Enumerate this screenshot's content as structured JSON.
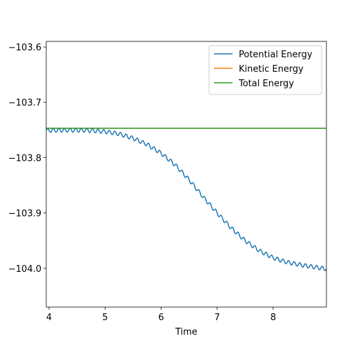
{
  "chart_data": {
    "type": "line",
    "title": "",
    "xlabel": "Time",
    "ylabel": "",
    "xlim": [
      3.95,
      8.95
    ],
    "ylim": [
      -104.07,
      -103.59
    ],
    "x_ticks": [
      4,
      5,
      6,
      7,
      8
    ],
    "y_ticks": [
      -103.6,
      -103.7,
      -103.8,
      -103.9,
      -104.0
    ],
    "x_tick_labels": [
      "4",
      "5",
      "6",
      "7",
      "8"
    ],
    "y_tick_labels": [
      "−103.6",
      "−103.7",
      "−103.8",
      "−103.9",
      "−104.0"
    ],
    "grid": false,
    "legend_position": "top-right",
    "series": [
      {
        "name": "Potential Energy",
        "color": "#1f77b4",
        "x": [
          3.95,
          4.25,
          4.5,
          4.75,
          5.0,
          5.25,
          5.5,
          5.75,
          6.0,
          6.25,
          6.5,
          6.75,
          7.0,
          7.25,
          7.5,
          7.75,
          8.0,
          8.25,
          8.5,
          8.75,
          8.95
        ],
        "values": [
          -103.751,
          -103.7505,
          -103.7505,
          -103.751,
          -103.753,
          -103.757,
          -103.765,
          -103.776,
          -103.792,
          -103.813,
          -103.84,
          -103.871,
          -103.9,
          -103.927,
          -103.95,
          -103.968,
          -103.981,
          -103.989,
          -103.994,
          -103.998,
          -104.001
        ],
        "oscillation_amplitude": 0.0035,
        "oscillation_period": 0.1
      },
      {
        "name": "Kinetic Energy",
        "color": "#ff7f0e",
        "x": [
          3.95,
          8.95
        ],
        "values": [
          -103.747,
          -103.747
        ]
      },
      {
        "name": "Total Energy",
        "color": "#2ca02c",
        "x": [
          3.95,
          8.95
        ],
        "values": [
          -103.747,
          -103.747
        ]
      }
    ]
  }
}
